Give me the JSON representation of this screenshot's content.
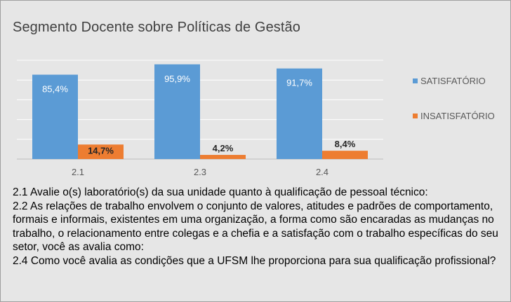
{
  "title": "Segmento Docente sobre Políticas de Gestão",
  "colors": {
    "satisfatorio": "#5b9bd5",
    "insatisfatorio": "#ed7d31",
    "background": "#e6e6e6",
    "grid": "#ffffff"
  },
  "chart_data": {
    "type": "bar",
    "categories": [
      "2.1",
      "2.3",
      "2.4"
    ],
    "series": [
      {
        "name": "SATISFATÓRIO",
        "values": [
          85.4,
          95.9,
          91.7
        ],
        "labels": [
          "85,4%",
          "95,9%",
          "91,7%"
        ]
      },
      {
        "name": "INSATISFATÓRIO",
        "values": [
          14.7,
          4.2,
          8.4
        ],
        "labels": [
          "14,7%",
          "4,2%",
          "8,4%"
        ]
      }
    ],
    "ylim": [
      0,
      100
    ],
    "grid": true,
    "legend": "right",
    "title": "Segmento Docente sobre Políticas de Gestão"
  },
  "notes": [
    "2.1 Avalie o(s) laboratório(s) da sua unidade quanto à qualificação de pessoal técnico:",
    "2.2 As relações de trabalho envolvem o conjunto de valores, atitudes e padrões de comportamento, formais e informais, existentes em uma organização, a forma como são encaradas as mudanças no trabalho, o relacionamento entre colegas e a chefia e a satisfação com o trabalho específicas do seu setor, você as avalia como:",
    "2.4 Como você avalia as condições que a UFSM lhe proporciona para sua qualificação profissional?"
  ]
}
